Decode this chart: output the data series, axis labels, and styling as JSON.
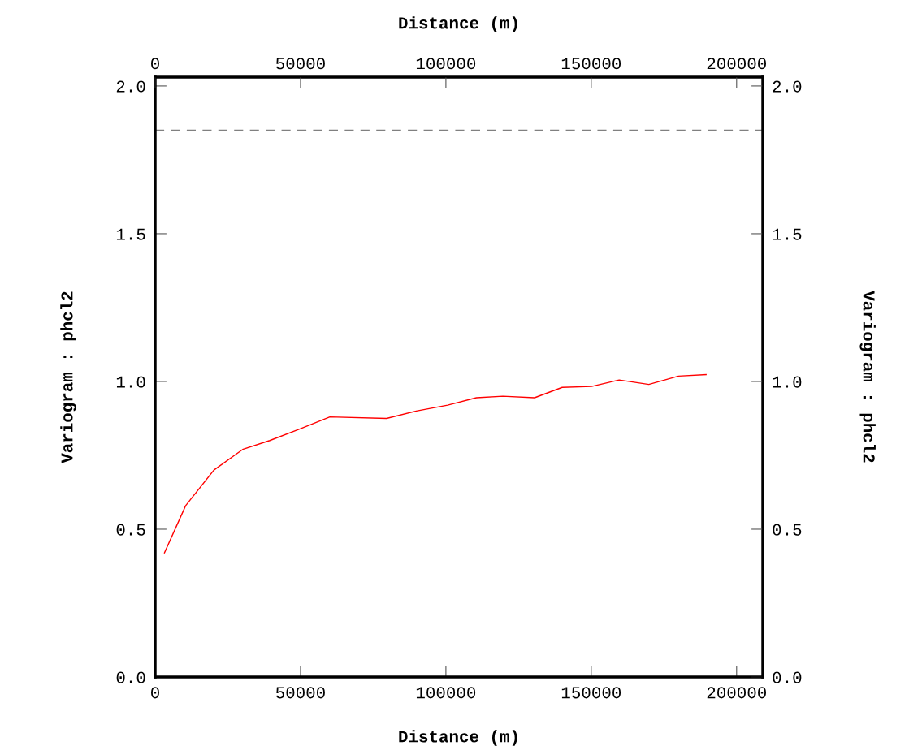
{
  "chart_data": {
    "type": "line",
    "xlabel": "Distance (m)",
    "x2label": "Distance (m)",
    "ylabel": "Variogram : phcl2",
    "y2label": "Variogram : phcl2",
    "x": [
      3200,
      10500,
      20200,
      30100,
      39400,
      50000,
      60100,
      79600,
      89800,
      100600,
      110500,
      119600,
      130500,
      140000,
      150100,
      159600,
      169800,
      180000,
      189500
    ],
    "series": [
      {
        "color": "#ff0000",
        "values": [
          0.42,
          0.58,
          0.7,
          0.77,
          0.8,
          0.84,
          0.88,
          0.875,
          0.9,
          0.92,
          0.945,
          0.95,
          0.945,
          0.98,
          0.983,
          1.005,
          0.99,
          1.018,
          1.023
        ]
      }
    ],
    "xlim": [
      0,
      209000
    ],
    "xticks": [
      0,
      50000,
      100000,
      150000,
      200000
    ],
    "x2lim": [
      0,
      209000
    ],
    "x2ticks": [
      0,
      50000,
      100000,
      150000,
      200000
    ],
    "ylim": [
      0,
      2.03
    ],
    "yticks": [
      {
        "value": 0,
        "label": "0.0"
      },
      {
        "value": 0.5,
        "label": "0.5"
      },
      {
        "value": 1.0,
        "label": "1.0"
      },
      {
        "value": 1.5,
        "label": "1.5"
      },
      {
        "value": 2.0,
        "label": "2.0"
      }
    ],
    "y2lim": [
      0,
      2.03
    ],
    "y2ticks": [
      {
        "value": 0,
        "label": "0.0"
      },
      {
        "value": 0.5,
        "label": "0.5"
      },
      {
        "value": 1.0,
        "label": "1.0"
      },
      {
        "value": 1.5,
        "label": "1.5"
      },
      {
        "value": 2.0,
        "label": "2.0"
      }
    ],
    "ref_lines": [
      {
        "axis": "y",
        "value": 1.85,
        "color": "#808080",
        "line_style": "dashed"
      }
    ],
    "grid": false,
    "legend": false,
    "marker": "none",
    "line_style": "solid"
  }
}
